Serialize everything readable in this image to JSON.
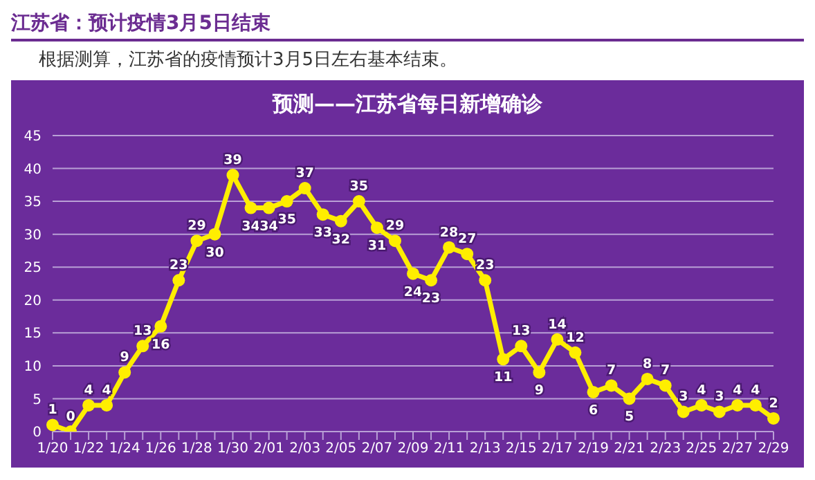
{
  "chart_data": {
    "type": "line",
    "title": "预测——江苏省每日新增确诊",
    "annotations": [
      "江苏省：预计疫情3月5日结束",
      "根据测算，江苏省的疫情预计3月5日左右基本结束。"
    ],
    "categories": [
      "1/20",
      null,
      "1/22",
      null,
      "1/24",
      null,
      "1/26",
      null,
      "1/28",
      null,
      "1/30",
      null,
      "2/01",
      null,
      "2/03",
      null,
      "2/05",
      null,
      "2/07",
      null,
      "2/09",
      null,
      "2/11",
      null,
      "2/13",
      null,
      "2/15",
      null,
      "2/17",
      null,
      "2/19",
      null,
      "2/21",
      null,
      "2/23",
      null,
      "2/25",
      null,
      "2/27",
      null,
      "2/29"
    ],
    "series": [
      {
        "color": "#ffee00",
        "values": [
          1,
          0,
          4,
          4,
          9,
          13,
          16,
          23,
          29,
          30,
          39,
          34,
          34,
          35,
          37,
          33,
          32,
          35,
          31,
          29,
          24,
          23,
          28,
          27,
          23,
          11,
          13,
          9,
          14,
          12,
          6,
          7,
          5,
          8,
          7,
          3,
          4,
          3,
          4,
          4,
          2
        ]
      }
    ],
    "ylim": [
      0,
      45
    ],
    "yticks": [
      0,
      5,
      10,
      15,
      20,
      25,
      30,
      35,
      40,
      45
    ],
    "grid": "y",
    "legend": false,
    "marker": "circle",
    "line_style": "solid",
    "data_labels": true
  }
}
